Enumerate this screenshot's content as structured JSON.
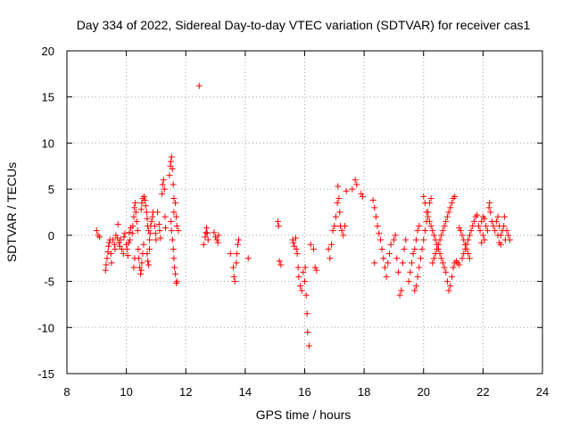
{
  "chart_data": {
    "type": "scatter",
    "title": "Day 334 of 2022, Sidereal Day-to-day VTEC variation (SDTVAR) for receiver cas1",
    "xlabel": "GPS time / hours",
    "ylabel": "SDTVAR / TECUs",
    "xlim": [
      8,
      24
    ],
    "ylim": [
      -15,
      20
    ],
    "xticks": [
      8,
      10,
      12,
      14,
      16,
      18,
      20,
      22,
      24
    ],
    "yticks": [
      -15,
      -10,
      -5,
      0,
      5,
      10,
      15,
      20
    ],
    "grid": true,
    "marker": "+",
    "color": "#ff0000",
    "series": [
      {
        "name": "SDTVAR",
        "points": [
          [
            9.0,
            0.5
          ],
          [
            9.05,
            0.0
          ],
          [
            9.1,
            -0.2
          ],
          [
            9.3,
            -3.8
          ],
          [
            9.32,
            -3.2
          ],
          [
            9.35,
            -2.5
          ],
          [
            9.38,
            -1.8
          ],
          [
            9.4,
            -1.2
          ],
          [
            9.42,
            -0.8
          ],
          [
            9.45,
            -0.5
          ],
          [
            9.48,
            -2.0
          ],
          [
            9.5,
            -3.0
          ],
          [
            9.55,
            -0.5
          ],
          [
            9.6,
            -1.0
          ],
          [
            9.62,
            -1.5
          ],
          [
            9.65,
            0.0
          ],
          [
            9.7,
            -0.3
          ],
          [
            9.72,
            1.2
          ],
          [
            9.75,
            -0.8
          ],
          [
            9.78,
            -1.2
          ],
          [
            9.8,
            -0.5
          ],
          [
            9.85,
            -1.5
          ],
          [
            9.9,
            -2.0
          ],
          [
            9.92,
            -0.2
          ],
          [
            9.95,
            0.2
          ],
          [
            10.0,
            -1.0
          ],
          [
            10.02,
            -1.5
          ],
          [
            10.05,
            -2.2
          ],
          [
            10.08,
            -0.8
          ],
          [
            10.1,
            0.3
          ],
          [
            10.12,
            -0.5
          ],
          [
            10.15,
            0.8
          ],
          [
            10.2,
            0.2
          ],
          [
            10.22,
            1.0
          ],
          [
            10.25,
            2.0
          ],
          [
            10.27,
            3.0
          ],
          [
            10.3,
            3.5
          ],
          [
            10.32,
            2.5
          ],
          [
            10.35,
            1.5
          ],
          [
            10.38,
            0.5
          ],
          [
            10.25,
            -3.5
          ],
          [
            10.28,
            -2.5
          ],
          [
            10.4,
            -1.5
          ],
          [
            10.42,
            -2.5
          ],
          [
            10.45,
            -3.5
          ],
          [
            10.48,
            -4.2
          ],
          [
            10.5,
            -3.8
          ],
          [
            10.52,
            -3.0
          ],
          [
            10.55,
            -2.0
          ],
          [
            10.58,
            -1.0
          ],
          [
            10.5,
            2.8
          ],
          [
            10.52,
            3.5
          ],
          [
            10.55,
            4.0
          ],
          [
            10.6,
            4.2
          ],
          [
            10.62,
            3.8
          ],
          [
            10.65,
            3.2
          ],
          [
            10.68,
            2.5
          ],
          [
            10.7,
            1.8
          ],
          [
            10.72,
            1.0
          ],
          [
            10.75,
            0.5
          ],
          [
            10.78,
            -0.5
          ],
          [
            10.7,
            -2.0
          ],
          [
            10.72,
            -2.8
          ],
          [
            10.75,
            -3.2
          ],
          [
            10.78,
            -1.5
          ],
          [
            10.8,
            0.2
          ],
          [
            10.82,
            1.0
          ],
          [
            10.85,
            1.5
          ],
          [
            10.88,
            2.0
          ],
          [
            10.9,
            2.5
          ],
          [
            10.95,
            1.0
          ],
          [
            10.98,
            0.2
          ],
          [
            11.0,
            -0.5
          ],
          [
            11.05,
            2.5
          ],
          [
            11.1,
            1.2
          ],
          [
            11.12,
            0.5
          ],
          [
            11.15,
            -0.3
          ],
          [
            11.2,
            4.5
          ],
          [
            11.22,
            5.5
          ],
          [
            11.25,
            6.0
          ],
          [
            11.28,
            5.0
          ],
          [
            11.3,
            2.0
          ],
          [
            11.32,
            0.8
          ],
          [
            11.45,
            6.5
          ],
          [
            11.48,
            7.5
          ],
          [
            11.5,
            8.0
          ],
          [
            11.52,
            8.5
          ],
          [
            11.55,
            7.2
          ],
          [
            11.58,
            5.5
          ],
          [
            11.6,
            4.0
          ],
          [
            11.5,
            1.5
          ],
          [
            11.52,
            0.5
          ],
          [
            11.55,
            -0.5
          ],
          [
            11.58,
            -1.5
          ],
          [
            11.6,
            -2.5
          ],
          [
            11.62,
            -3.5
          ],
          [
            11.65,
            -4.2
          ],
          [
            11.68,
            -5.2
          ],
          [
            11.7,
            -5.0
          ],
          [
            11.6,
            2.5
          ],
          [
            11.65,
            3.5
          ],
          [
            11.68,
            2.0
          ],
          [
            11.7,
            1.0
          ],
          [
            11.75,
            0.5
          ],
          [
            12.45,
            16.2
          ],
          [
            12.6,
            -1.0
          ],
          [
            12.65,
            -0.2
          ],
          [
            12.68,
            0.3
          ],
          [
            12.7,
            0.8
          ],
          [
            12.72,
            0.2
          ],
          [
            12.75,
            -0.5
          ],
          [
            12.95,
            0.3
          ],
          [
            13.0,
            -0.2
          ],
          [
            13.05,
            -0.5
          ],
          [
            13.08,
            -0.8
          ],
          [
            13.1,
            0.0
          ],
          [
            13.5,
            -2.0
          ],
          [
            13.6,
            -3.5
          ],
          [
            13.62,
            -4.5
          ],
          [
            13.65,
            -5.0
          ],
          [
            13.7,
            -3.0
          ],
          [
            13.72,
            -2.0
          ],
          [
            13.75,
            -1.0
          ],
          [
            13.78,
            -0.5
          ],
          [
            14.1,
            -2.5
          ],
          [
            15.1,
            1.5
          ],
          [
            15.12,
            1.0
          ],
          [
            15.15,
            -2.8
          ],
          [
            15.2,
            -3.2
          ],
          [
            15.6,
            -0.5
          ],
          [
            15.62,
            -0.8
          ],
          [
            15.65,
            -1.2
          ],
          [
            15.7,
            -0.3
          ],
          [
            15.72,
            -1.5
          ],
          [
            15.75,
            -2.0
          ],
          [
            15.78,
            -3.5
          ],
          [
            15.8,
            -4.5
          ],
          [
            15.85,
            -5.5
          ],
          [
            15.9,
            -6.0
          ],
          [
            15.95,
            -4.0
          ],
          [
            16.0,
            -5.0
          ],
          [
            16.02,
            -3.5
          ],
          [
            16.05,
            -6.5
          ],
          [
            16.08,
            -8.5
          ],
          [
            16.1,
            -10.5
          ],
          [
            16.15,
            -12.0
          ],
          [
            16.2,
            -1.0
          ],
          [
            16.3,
            -1.5
          ],
          [
            16.35,
            -3.5
          ],
          [
            16.4,
            -3.8
          ],
          [
            16.8,
            -1.5
          ],
          [
            16.85,
            -2.5
          ],
          [
            16.9,
            -1.0
          ],
          [
            16.95,
            0.5
          ],
          [
            17.0,
            1.0
          ],
          [
            17.05,
            2.0
          ],
          [
            17.1,
            3.5
          ],
          [
            17.12,
            5.3
          ],
          [
            17.15,
            4.0
          ],
          [
            17.18,
            2.5
          ],
          [
            17.2,
            1.0
          ],
          [
            17.25,
            0.5
          ],
          [
            17.3,
            0.0
          ],
          [
            17.35,
            1.0
          ],
          [
            17.4,
            4.8
          ],
          [
            17.6,
            5.0
          ],
          [
            17.7,
            6.0
          ],
          [
            17.75,
            5.5
          ],
          [
            17.9,
            4.5
          ],
          [
            17.95,
            4.2
          ],
          [
            18.3,
            3.8
          ],
          [
            18.35,
            3.0
          ],
          [
            18.4,
            2.0
          ],
          [
            18.45,
            1.0
          ],
          [
            18.5,
            0.2
          ],
          [
            18.55,
            -0.5
          ],
          [
            18.6,
            -1.5
          ],
          [
            18.65,
            -2.5
          ],
          [
            18.7,
            -3.5
          ],
          [
            18.75,
            -4.5
          ],
          [
            18.8,
            -3.0
          ],
          [
            18.85,
            -2.0
          ],
          [
            18.35,
            -3.0
          ],
          [
            18.9,
            -1.0
          ],
          [
            19.0,
            -0.5
          ],
          [
            19.05,
            0.0
          ],
          [
            19.1,
            -2.5
          ],
          [
            19.15,
            -4.0
          ],
          [
            19.2,
            -6.5
          ],
          [
            19.25,
            -6.0
          ],
          [
            19.3,
            -3.0
          ],
          [
            19.35,
            -1.5
          ],
          [
            19.4,
            -0.5
          ],
          [
            19.5,
            -5.0
          ],
          [
            19.55,
            -4.0
          ],
          [
            19.6,
            -3.0
          ],
          [
            19.65,
            -2.0
          ],
          [
            19.7,
            -1.5
          ],
          [
            19.75,
            -0.5
          ],
          [
            19.8,
            0.5
          ],
          [
            19.85,
            1.0
          ],
          [
            19.7,
            -6.0
          ],
          [
            19.75,
            -5.5
          ],
          [
            19.8,
            -4.5
          ],
          [
            19.85,
            -3.5
          ],
          [
            19.9,
            -2.5
          ],
          [
            19.95,
            -1.5
          ],
          [
            20.0,
            -0.5
          ],
          [
            20.05,
            0.5
          ],
          [
            20.1,
            1.5
          ],
          [
            20.15,
            2.5
          ],
          [
            20.2,
            3.5
          ],
          [
            20.25,
            4.0
          ],
          [
            20.0,
            4.2
          ],
          [
            20.05,
            3.5
          ],
          [
            20.1,
            2.5
          ],
          [
            20.15,
            2.0
          ],
          [
            20.2,
            1.5
          ],
          [
            20.25,
            1.0
          ],
          [
            20.3,
            0.5
          ],
          [
            20.35,
            0.0
          ],
          [
            20.4,
            -0.5
          ],
          [
            20.45,
            -1.0
          ],
          [
            20.5,
            -1.5
          ],
          [
            20.55,
            -2.0
          ],
          [
            20.3,
            -3.0
          ],
          [
            20.35,
            -2.5
          ],
          [
            20.4,
            -2.0
          ],
          [
            20.45,
            -1.5
          ],
          [
            20.5,
            -1.0
          ],
          [
            20.55,
            -0.5
          ],
          [
            20.6,
            0.0
          ],
          [
            20.65,
            0.5
          ],
          [
            20.7,
            1.0
          ],
          [
            20.75,
            1.5
          ],
          [
            20.8,
            2.0
          ],
          [
            20.85,
            2.5
          ],
          [
            20.9,
            3.0
          ],
          [
            20.95,
            3.5
          ],
          [
            21.0,
            4.0
          ],
          [
            21.05,
            4.2
          ],
          [
            20.6,
            -2.5
          ],
          [
            20.65,
            -3.0
          ],
          [
            20.7,
            -3.5
          ],
          [
            20.75,
            -4.0
          ],
          [
            20.8,
            -5.0
          ],
          [
            20.85,
            -6.0
          ],
          [
            20.9,
            -5.5
          ],
          [
            20.95,
            -4.5
          ],
          [
            21.0,
            -3.5
          ],
          [
            21.05,
            -3.0
          ],
          [
            21.1,
            -2.8
          ],
          [
            21.15,
            -3.0
          ],
          [
            21.2,
            -3.2
          ],
          [
            21.3,
            -2.5
          ],
          [
            21.35,
            -2.0
          ],
          [
            21.4,
            -1.5
          ],
          [
            21.45,
            -1.0
          ],
          [
            21.5,
            -0.5
          ],
          [
            21.55,
            0.0
          ],
          [
            21.6,
            0.5
          ],
          [
            21.65,
            1.0
          ],
          [
            21.7,
            1.5
          ],
          [
            21.75,
            2.0
          ],
          [
            21.8,
            2.2
          ],
          [
            21.2,
            0.8
          ],
          [
            21.25,
            0.5
          ],
          [
            21.3,
            0.0
          ],
          [
            21.35,
            -0.5
          ],
          [
            21.4,
            -1.0
          ],
          [
            21.45,
            -1.5
          ],
          [
            21.5,
            -2.0
          ],
          [
            21.55,
            -2.5
          ],
          [
            21.85,
            1.0
          ],
          [
            21.9,
            0.5
          ],
          [
            21.95,
            1.5
          ],
          [
            22.0,
            2.0
          ],
          [
            22.05,
            1.8
          ],
          [
            22.1,
            1.0
          ],
          [
            22.15,
            0.5
          ],
          [
            22.2,
            3.0
          ],
          [
            22.22,
            3.5
          ],
          [
            22.25,
            2.5
          ],
          [
            22.3,
            1.5
          ],
          [
            22.35,
            1.0
          ],
          [
            22.4,
            0.5
          ],
          [
            22.45,
            1.5
          ],
          [
            22.5,
            2.0
          ],
          [
            22.55,
            1.0
          ],
          [
            22.6,
            0.0
          ],
          [
            22.65,
            0.5
          ],
          [
            22.7,
            1.0
          ],
          [
            22.72,
            2.0
          ],
          [
            22.75,
            -0.5
          ],
          [
            22.8,
            0.5
          ],
          [
            22.85,
            0.0
          ],
          [
            22.9,
            -0.5
          ],
          [
            22.0,
            0.0
          ],
          [
            22.05,
            -0.5
          ],
          [
            21.95,
            -0.8
          ],
          [
            22.5,
            0.0
          ],
          [
            22.55,
            -0.8
          ],
          [
            22.6,
            -1.0
          ]
        ]
      }
    ]
  }
}
